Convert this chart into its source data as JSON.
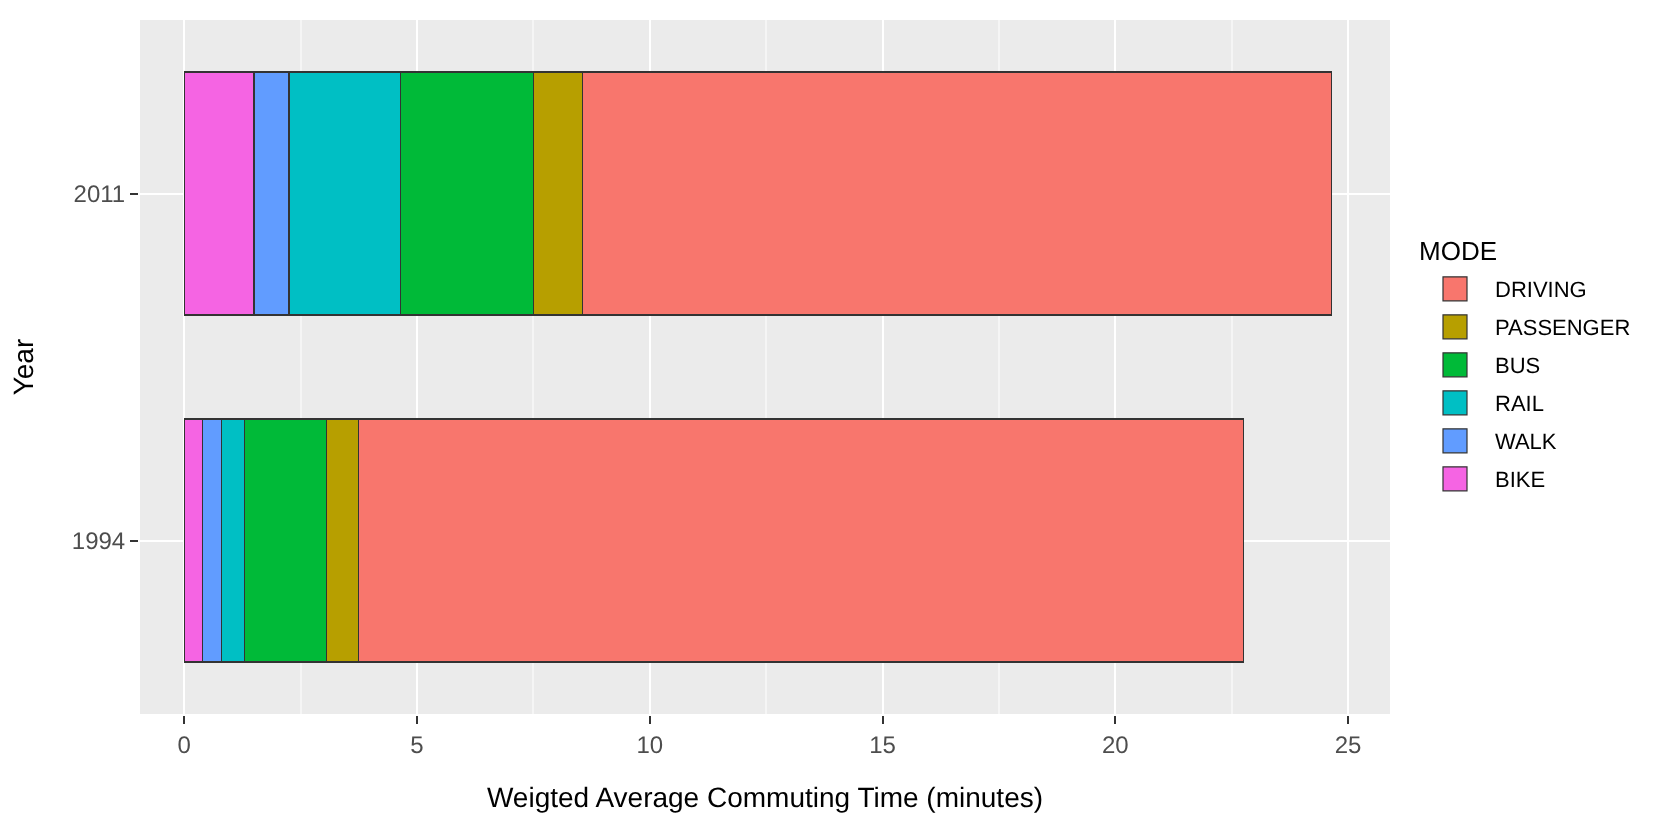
{
  "chart_data": {
    "type": "bar",
    "orientation": "horizontal",
    "stacked": true,
    "xlabel": "Weigted Average Commuting Time (minutes)",
    "ylabel": "Year",
    "legend_title": "MODE",
    "legend": "right",
    "grid": true,
    "categories": [
      "2011",
      "1994"
    ],
    "series": [
      {
        "name": "BIKE",
        "color": "#f564e3",
        "values": [
          1.5,
          0.4
        ]
      },
      {
        "name": "WALK",
        "color": "#619cff",
        "values": [
          0.75,
          0.4
        ]
      },
      {
        "name": "RAIL",
        "color": "#00bfc4",
        "values": [
          2.4,
          0.5
        ]
      },
      {
        "name": "BUS",
        "color": "#00ba38",
        "values": [
          2.85,
          1.75
        ]
      },
      {
        "name": "PASSENGER",
        "color": "#b79f00",
        "values": [
          1.05,
          0.7
        ]
      },
      {
        "name": "DRIVING",
        "color": "#f8766d",
        "values": [
          16.1,
          19.0
        ]
      }
    ],
    "xlim": [
      -0.95,
      25.9
    ],
    "xticks": [
      0,
      5,
      10,
      15,
      20,
      25
    ]
  }
}
